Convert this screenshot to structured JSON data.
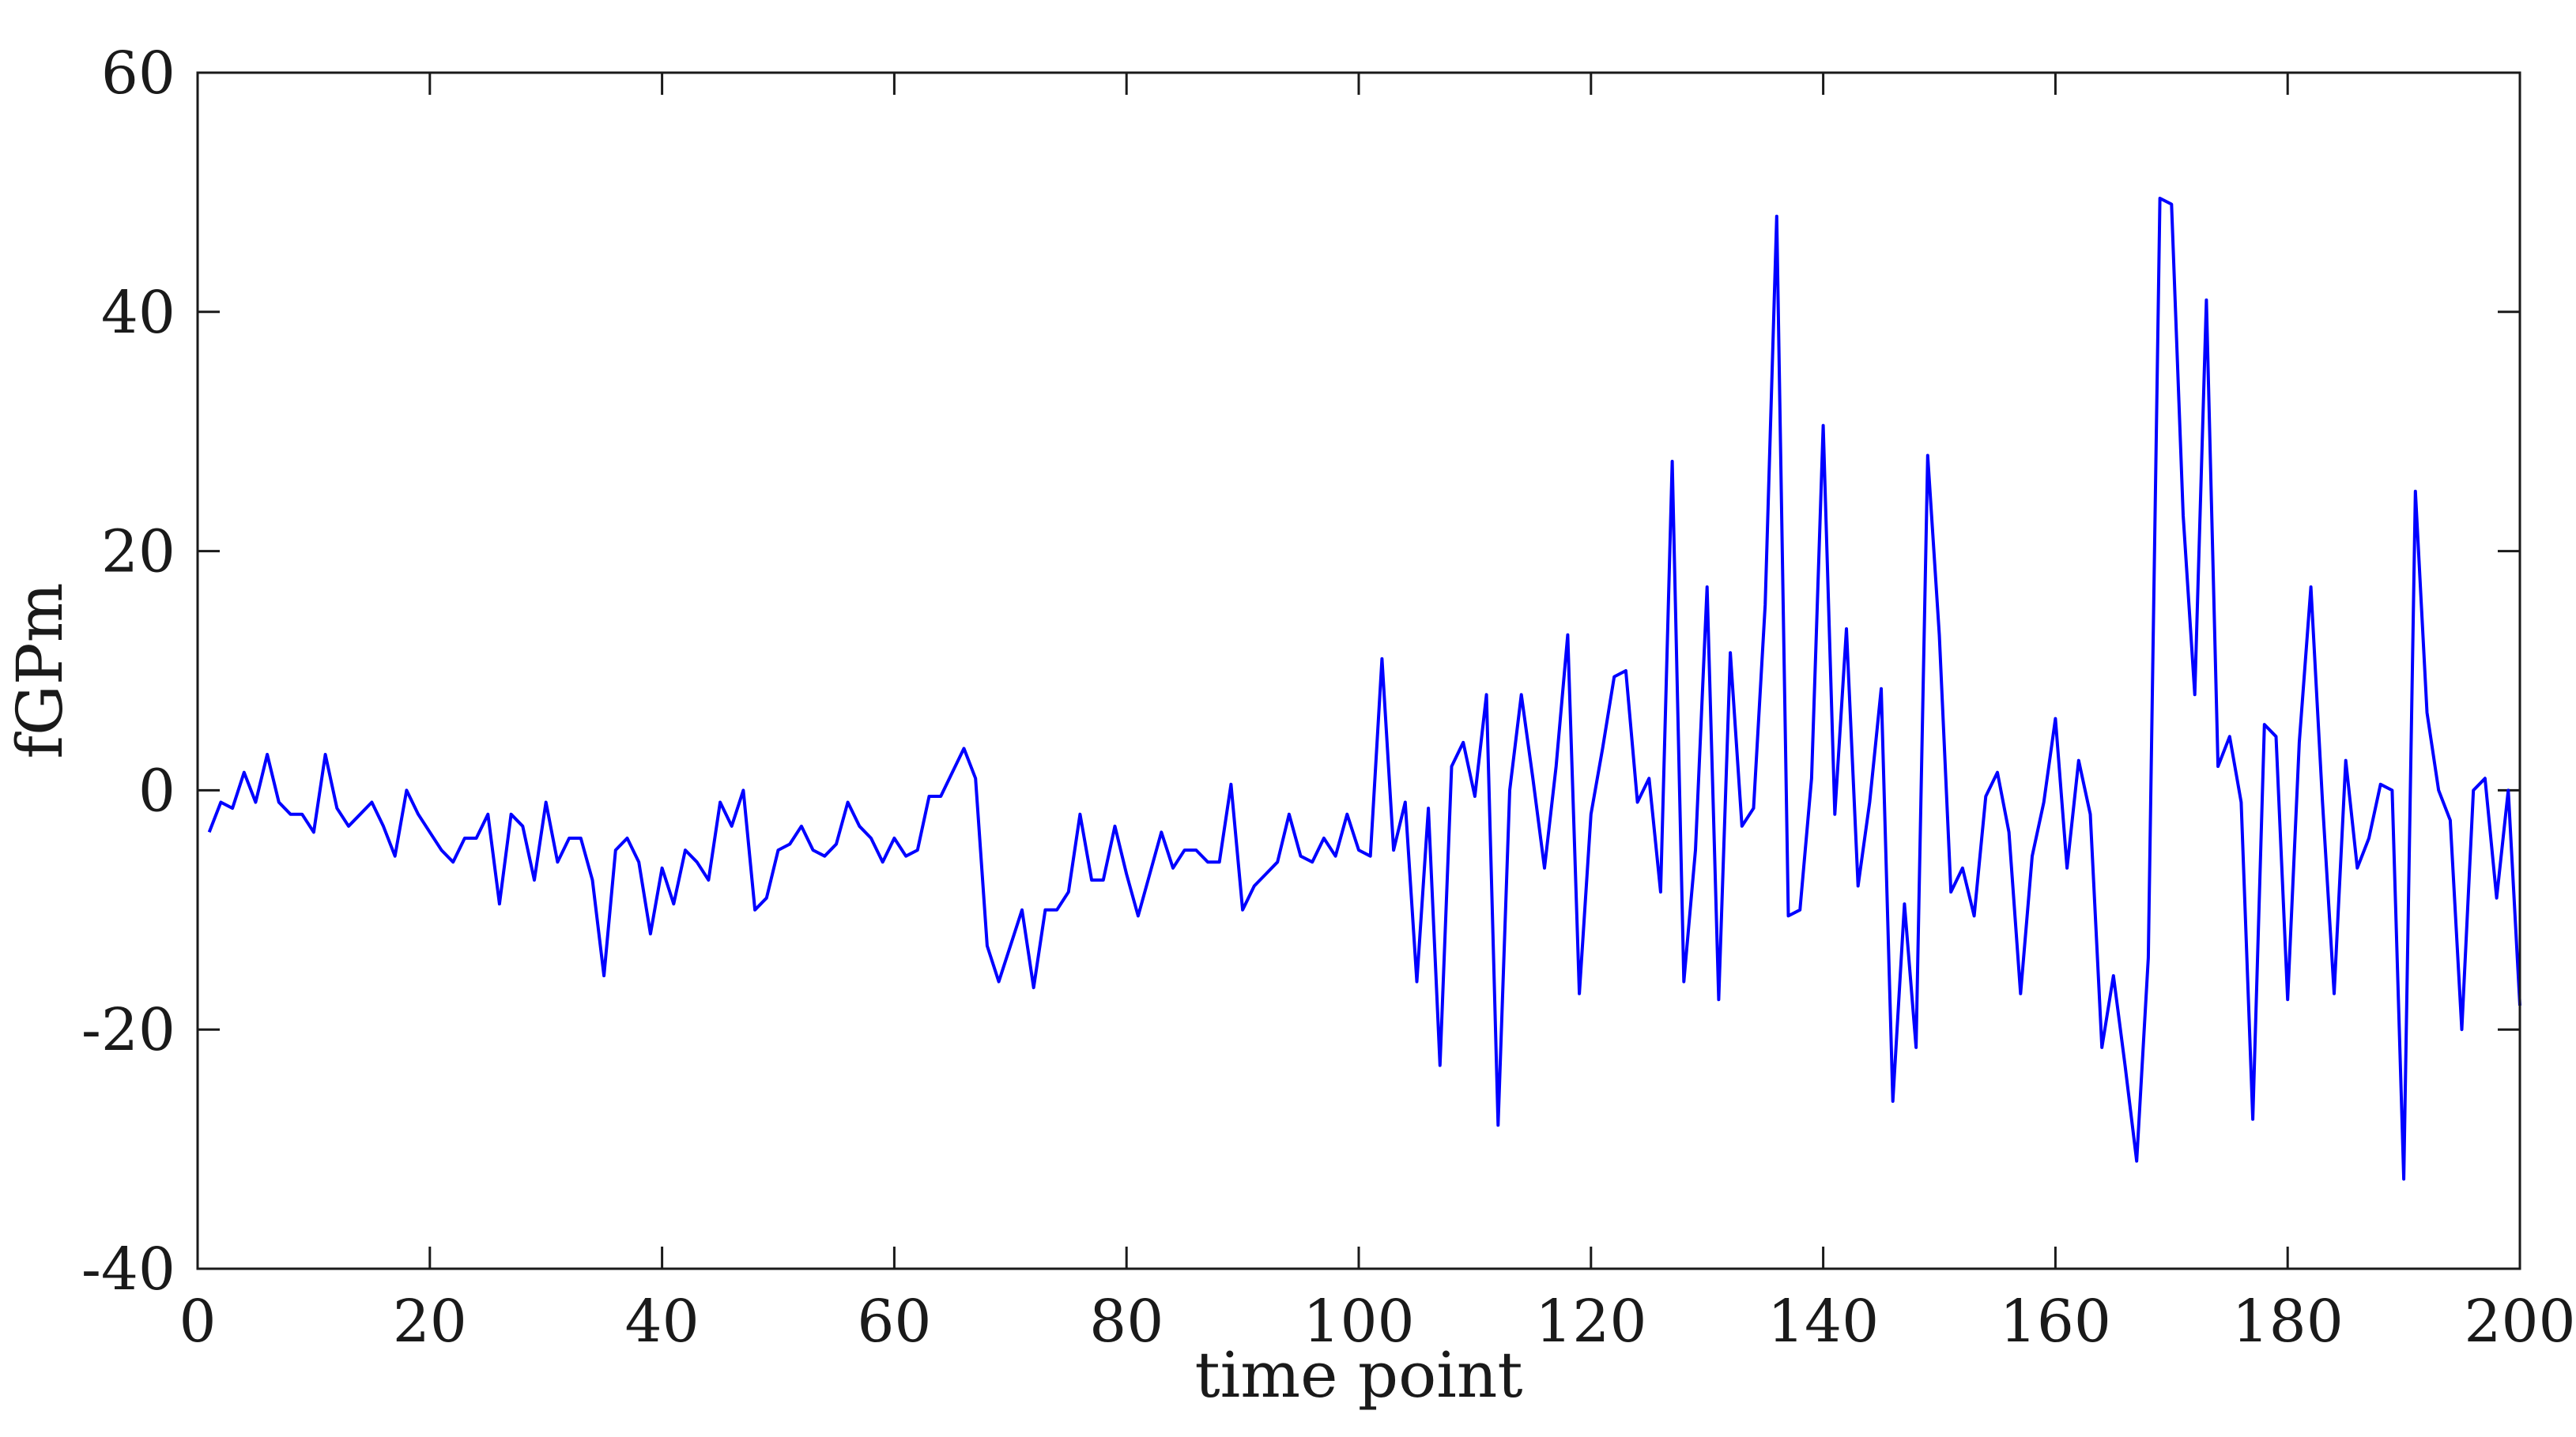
{
  "chart_data": {
    "type": "line",
    "title": "",
    "xlabel": "time point",
    "ylabel": "fGPm",
    "xlim": [
      0,
      200
    ],
    "ylim": [
      -40,
      60
    ],
    "xticks": [
      0,
      20,
      40,
      60,
      80,
      100,
      120,
      140,
      160,
      180,
      200
    ],
    "yticks": [
      -40,
      -20,
      0,
      20,
      40,
      60
    ],
    "xtick_labels": [
      "0",
      "20",
      "40",
      "60",
      "80",
      "100",
      "120",
      "140",
      "160",
      "180",
      "200"
    ],
    "ytick_labels": [
      "-40",
      "-20",
      "0",
      "20",
      "40",
      "60"
    ],
    "grid": false,
    "legend": "none",
    "line_color": "#0000ff",
    "series": [
      {
        "x": [
          1,
          2,
          3,
          4,
          5,
          6,
          7,
          8,
          9,
          10,
          11,
          12,
          13,
          14,
          15,
          16,
          17,
          18,
          19,
          20,
          21,
          22,
          23,
          24,
          25,
          26,
          27,
          28,
          29,
          30,
          31,
          32,
          33,
          34,
          35,
          36,
          37,
          38,
          39,
          40,
          41,
          42,
          43,
          44,
          45,
          46,
          47,
          48,
          49,
          50,
          51,
          52,
          53,
          54,
          55,
          56,
          57,
          58,
          59,
          60,
          61,
          62,
          63,
          64,
          65,
          66,
          67,
          68,
          69,
          70,
          71,
          72,
          73,
          74,
          75,
          76,
          77,
          78,
          79,
          80,
          81,
          82,
          83,
          84,
          85,
          86,
          87,
          88,
          89,
          90,
          91,
          92,
          93,
          94,
          95,
          96,
          97,
          98,
          99,
          100,
          101,
          102,
          103,
          104,
          105,
          106,
          107,
          108,
          109,
          110,
          111,
          112,
          113,
          114,
          115,
          116,
          117,
          118,
          119,
          120,
          121,
          122,
          123,
          124,
          125,
          126,
          127,
          128,
          129,
          130,
          131,
          132,
          133,
          134,
          135,
          136,
          137,
          138,
          139,
          140,
          141,
          142,
          143,
          144,
          145,
          146,
          147,
          148,
          149,
          150,
          151,
          152,
          153,
          154,
          155,
          156,
          157,
          158,
          159,
          160,
          161,
          162,
          163,
          164,
          165,
          166,
          167,
          168,
          169,
          170,
          171,
          172,
          173,
          174,
          175,
          176,
          177,
          178,
          179,
          180,
          181,
          182,
          183,
          184,
          185,
          186,
          187,
          188,
          189,
          190,
          191,
          192,
          193,
          194,
          195,
          196,
          197,
          198,
          199,
          200
        ],
        "values": [
          -3.5,
          -1,
          -1.5,
          1.5,
          -1,
          3,
          -1,
          -2,
          -2,
          -3.5,
          3,
          -1.5,
          -3,
          -2,
          -1,
          -3,
          -5.5,
          0,
          -2,
          -3.5,
          -5,
          -6,
          -4,
          -4,
          -2,
          -9.5,
          -2,
          -3,
          -7.5,
          -1,
          -6,
          -4,
          -4,
          -7.5,
          -15.5,
          -5,
          -4,
          -6,
          -12,
          -6.5,
          -9.5,
          -5,
          -6,
          -7.5,
          -1,
          -3,
          0,
          -10,
          -9,
          -5,
          -4.5,
          -3,
          -5,
          -5.5,
          -4.5,
          -1,
          -3,
          -4,
          -6,
          -4,
          -5.5,
          -5,
          -0.5,
          -0.5,
          1.5,
          3.5,
          1,
          -13,
          -16,
          -13,
          -10,
          -16.5,
          -10,
          -10,
          -8.5,
          -2,
          -7.5,
          -7.5,
          -3,
          -7,
          -10.5,
          -7,
          -3.5,
          -6.5,
          -5,
          -5,
          -6,
          -6,
          0.5,
          -10,
          -8,
          -7,
          -6,
          -2,
          -5.5,
          -6,
          -4,
          -5.5,
          -2,
          -5,
          -5.5,
          11,
          -5,
          -1,
          -16,
          -1.5,
          -23,
          2,
          4,
          -0.5,
          8,
          -28,
          0,
          8,
          1,
          -6.5,
          2,
          13,
          -17,
          -2,
          3.5,
          9.5,
          10,
          -1,
          1,
          -8.5,
          27.5,
          -16,
          -5,
          17,
          -17.5,
          11.5,
          -3,
          -1.5,
          15.5,
          48,
          -10.5,
          -10,
          1,
          30.5,
          -2,
          13.5,
          -8,
          -1,
          8.5,
          -26,
          -9.5,
          -21.5,
          28,
          13,
          -8.5,
          -6.5,
          -10.5,
          -0.5,
          1.5,
          -3.5,
          -17,
          -5.5,
          -1,
          6,
          -6.5,
          2.5,
          -2,
          -21.5,
          -15.5,
          -23,
          -31,
          -14,
          49.5,
          49,
          23,
          8,
          41,
          2,
          4.5,
          -1,
          -27.5,
          5.5,
          4.5,
          -17.5,
          4,
          17,
          -1,
          -17,
          2.5,
          -6.5,
          -4,
          0.5,
          0,
          -32.5,
          25,
          6.5,
          0,
          -2.5,
          -20,
          0,
          1,
          -9,
          0,
          -18
        ]
      }
    ]
  }
}
